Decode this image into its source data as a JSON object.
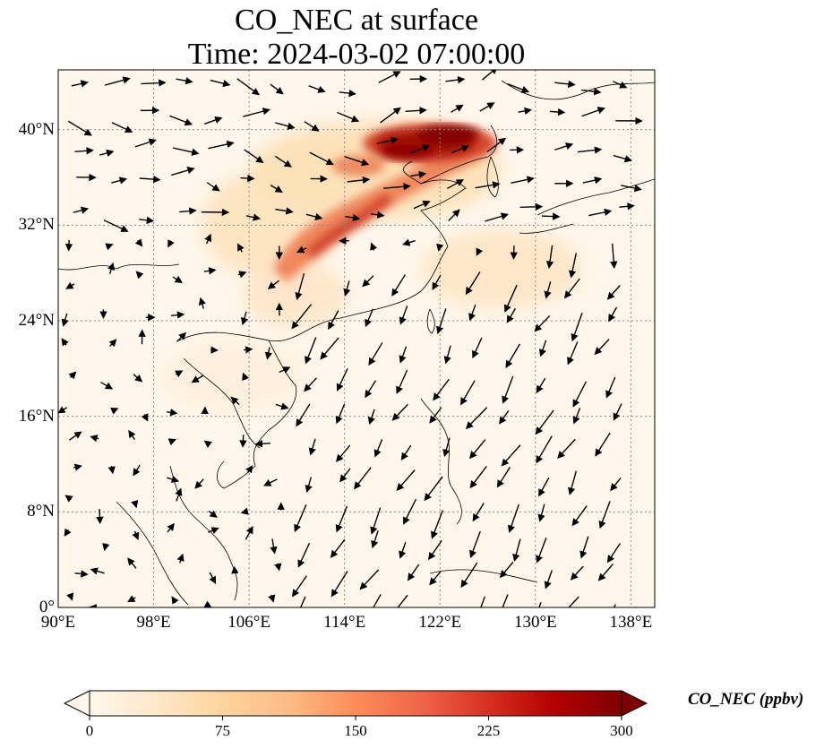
{
  "title": {
    "line1": "CO_NEC at surface",
    "line2": "Time: 2024-03-02 07:00:00"
  },
  "map": {
    "projection": "PlateCarree",
    "lon_range": [
      90,
      140
    ],
    "lat_range": [
      0,
      45
    ],
    "gridlines": true,
    "x_ticks": [
      {
        "value": 90,
        "label": "90°E"
      },
      {
        "value": 98,
        "label": "98°E"
      },
      {
        "value": 106,
        "label": "106°E"
      },
      {
        "value": 114,
        "label": "114°E"
      },
      {
        "value": 122,
        "label": "122°E"
      },
      {
        "value": 130,
        "label": "130°E"
      },
      {
        "value": 138,
        "label": "138°E"
      }
    ],
    "y_ticks": [
      {
        "value": 0,
        "label": "0°"
      },
      {
        "value": 8,
        "label": "8°N"
      },
      {
        "value": 16,
        "label": "16°N"
      },
      {
        "value": 24,
        "label": "24°N"
      },
      {
        "value": 32,
        "label": "32°N"
      },
      {
        "value": 40,
        "label": "40°N"
      }
    ],
    "overlay": "wind vectors"
  },
  "colorbar": {
    "label": "CO_NEC (ppbv)",
    "colormap": "OrRd",
    "min": 0,
    "max": 300,
    "extend": "both",
    "ticks": [
      {
        "value": 0,
        "label": "0"
      },
      {
        "value": 75,
        "label": "75"
      },
      {
        "value": 150,
        "label": "150"
      },
      {
        "value": 225,
        "label": "225"
      },
      {
        "value": 300,
        "label": "300"
      }
    ],
    "colors": [
      "#fff7ec",
      "#fee8c8",
      "#fdd49e",
      "#fdbb84",
      "#fc8d59",
      "#ef6548",
      "#d7301f",
      "#b30000",
      "#7f0000"
    ]
  }
}
